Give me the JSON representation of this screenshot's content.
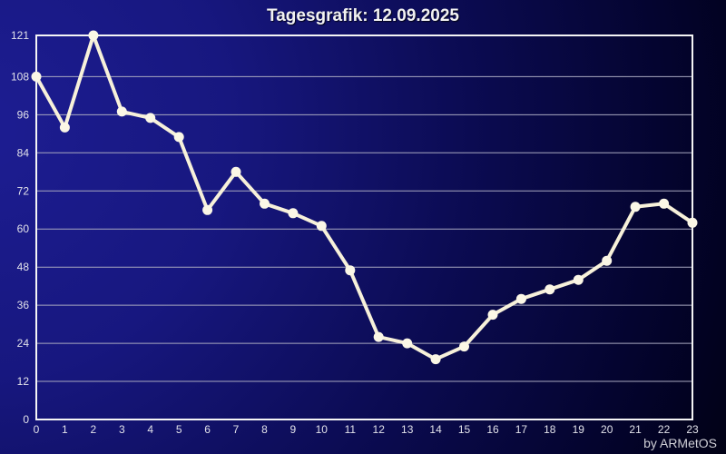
{
  "title": "Tagesgrafik: 12.09.2025",
  "credit": "by ARMetOS",
  "chart_data": {
    "type": "line",
    "title": "Tagesgrafik: 12.09.2025",
    "x": [
      0,
      1,
      2,
      3,
      4,
      5,
      6,
      7,
      8,
      9,
      10,
      11,
      12,
      13,
      14,
      15,
      16,
      17,
      18,
      19,
      20,
      21,
      22,
      23
    ],
    "values": [
      108,
      92,
      121,
      97,
      95,
      89,
      66,
      78,
      68,
      65,
      61,
      47,
      26,
      24,
      19,
      23,
      33,
      38,
      41,
      44,
      50,
      67,
      68,
      62
    ],
    "xlabel": "",
    "ylabel": "",
    "xlim": [
      0,
      23
    ],
    "ylim": [
      0,
      121
    ],
    "y_ticks": [
      0,
      12,
      24,
      36,
      48,
      60,
      72,
      84,
      96,
      108,
      121
    ],
    "x_ticks": [
      0,
      1,
      2,
      3,
      4,
      5,
      6,
      7,
      8,
      9,
      10,
      11,
      12,
      13,
      14,
      15,
      16,
      17,
      18,
      19,
      20,
      21,
      22,
      23
    ],
    "grid": "horizontal-only",
    "legend_position": "none",
    "colors": {
      "bg_center": "#1d1d92",
      "bg_mid1": "#17177f",
      "bg_mid2": "#0b0b52",
      "bg_mid3": "#03032a",
      "bg_edge": "#000006",
      "line": "#f7f1da",
      "marker": "#fbf7e6",
      "grid": "#a8a8c0",
      "border": "#f5f5f5",
      "tick_text": "#e2e2ea",
      "title_text": "#f2f2f2",
      "credit_text": "#cfcfd6"
    }
  }
}
